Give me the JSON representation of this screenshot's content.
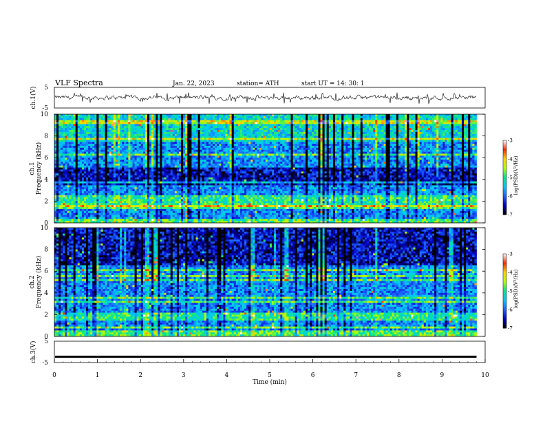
{
  "header": {
    "title": "VLF  Spectra",
    "date": "Jan. 22, 2023",
    "station": "station= ATH",
    "start": "start  UT  =    14: 30: 1"
  },
  "colors": {
    "frame": "#000000",
    "colormap": [
      "#000000",
      "#0000c8",
      "#1e64ff",
      "#00c8ff",
      "#00e68c",
      "#b4ff00",
      "#ffd200",
      "#ff2800",
      "#ffffff"
    ]
  },
  "chart_data": [
    {
      "type": "line",
      "id": "ch1-waveform",
      "ylabel": "ch.1(V)",
      "ylim": [
        -5,
        5
      ],
      "yticks": [
        "5",
        "-5"
      ],
      "xlim": [
        0,
        10
      ],
      "data_end_min": 9.8,
      "baseline": 0,
      "amplitude_range": [
        -1.5,
        1.5
      ]
    },
    {
      "type": "heatmap",
      "id": "ch1-spectrogram",
      "ylabel_top": "ch.1",
      "ylabel": "Frequency  (kHz)",
      "ylim": [
        0,
        10
      ],
      "yticks": [
        "0",
        "2",
        "4",
        "6",
        "8",
        "10"
      ],
      "xlim": [
        0,
        10
      ],
      "colorbar": {
        "label": "log(PSD)(V²/Hz)",
        "range": [
          -7,
          -3
        ],
        "ticks": [
          "-3",
          "-4",
          "-5",
          "-6",
          "-7"
        ]
      },
      "dark_band_khz": [
        3.5,
        5
      ],
      "bright_band_khz": [
        1.5,
        2.5
      ]
    },
    {
      "type": "heatmap",
      "id": "ch2-spectrogram",
      "ylabel_top": "ch.2",
      "ylabel": "Frequency  (kHz)",
      "ylim": [
        0,
        10
      ],
      "yticks": [
        "0",
        "2",
        "4",
        "6",
        "8",
        "10"
      ],
      "xlim": [
        0,
        10
      ],
      "colorbar": {
        "label": "log(PSD)(V²/Hz)",
        "range": [
          -7,
          -3
        ],
        "ticks": [
          "-3",
          "-4",
          "-5",
          "-6",
          "-7"
        ]
      },
      "dark_band_khz": [
        6.5,
        10
      ],
      "bright_band_khz": [
        1.5,
        2.2
      ]
    },
    {
      "type": "line",
      "id": "ch3-waveform",
      "ylabel": "ch.3(V)",
      "ylim": [
        -5,
        5
      ],
      "yticks": [
        "5",
        "-5"
      ],
      "xlim": [
        0,
        10
      ],
      "data_end_min": 9.8,
      "baseline": -2.3,
      "xlabel": "Time  (min)",
      "xticks": [
        "0",
        "1",
        "2",
        "3",
        "4",
        "5",
        "6",
        "7",
        "8",
        "9",
        "10"
      ]
    }
  ]
}
